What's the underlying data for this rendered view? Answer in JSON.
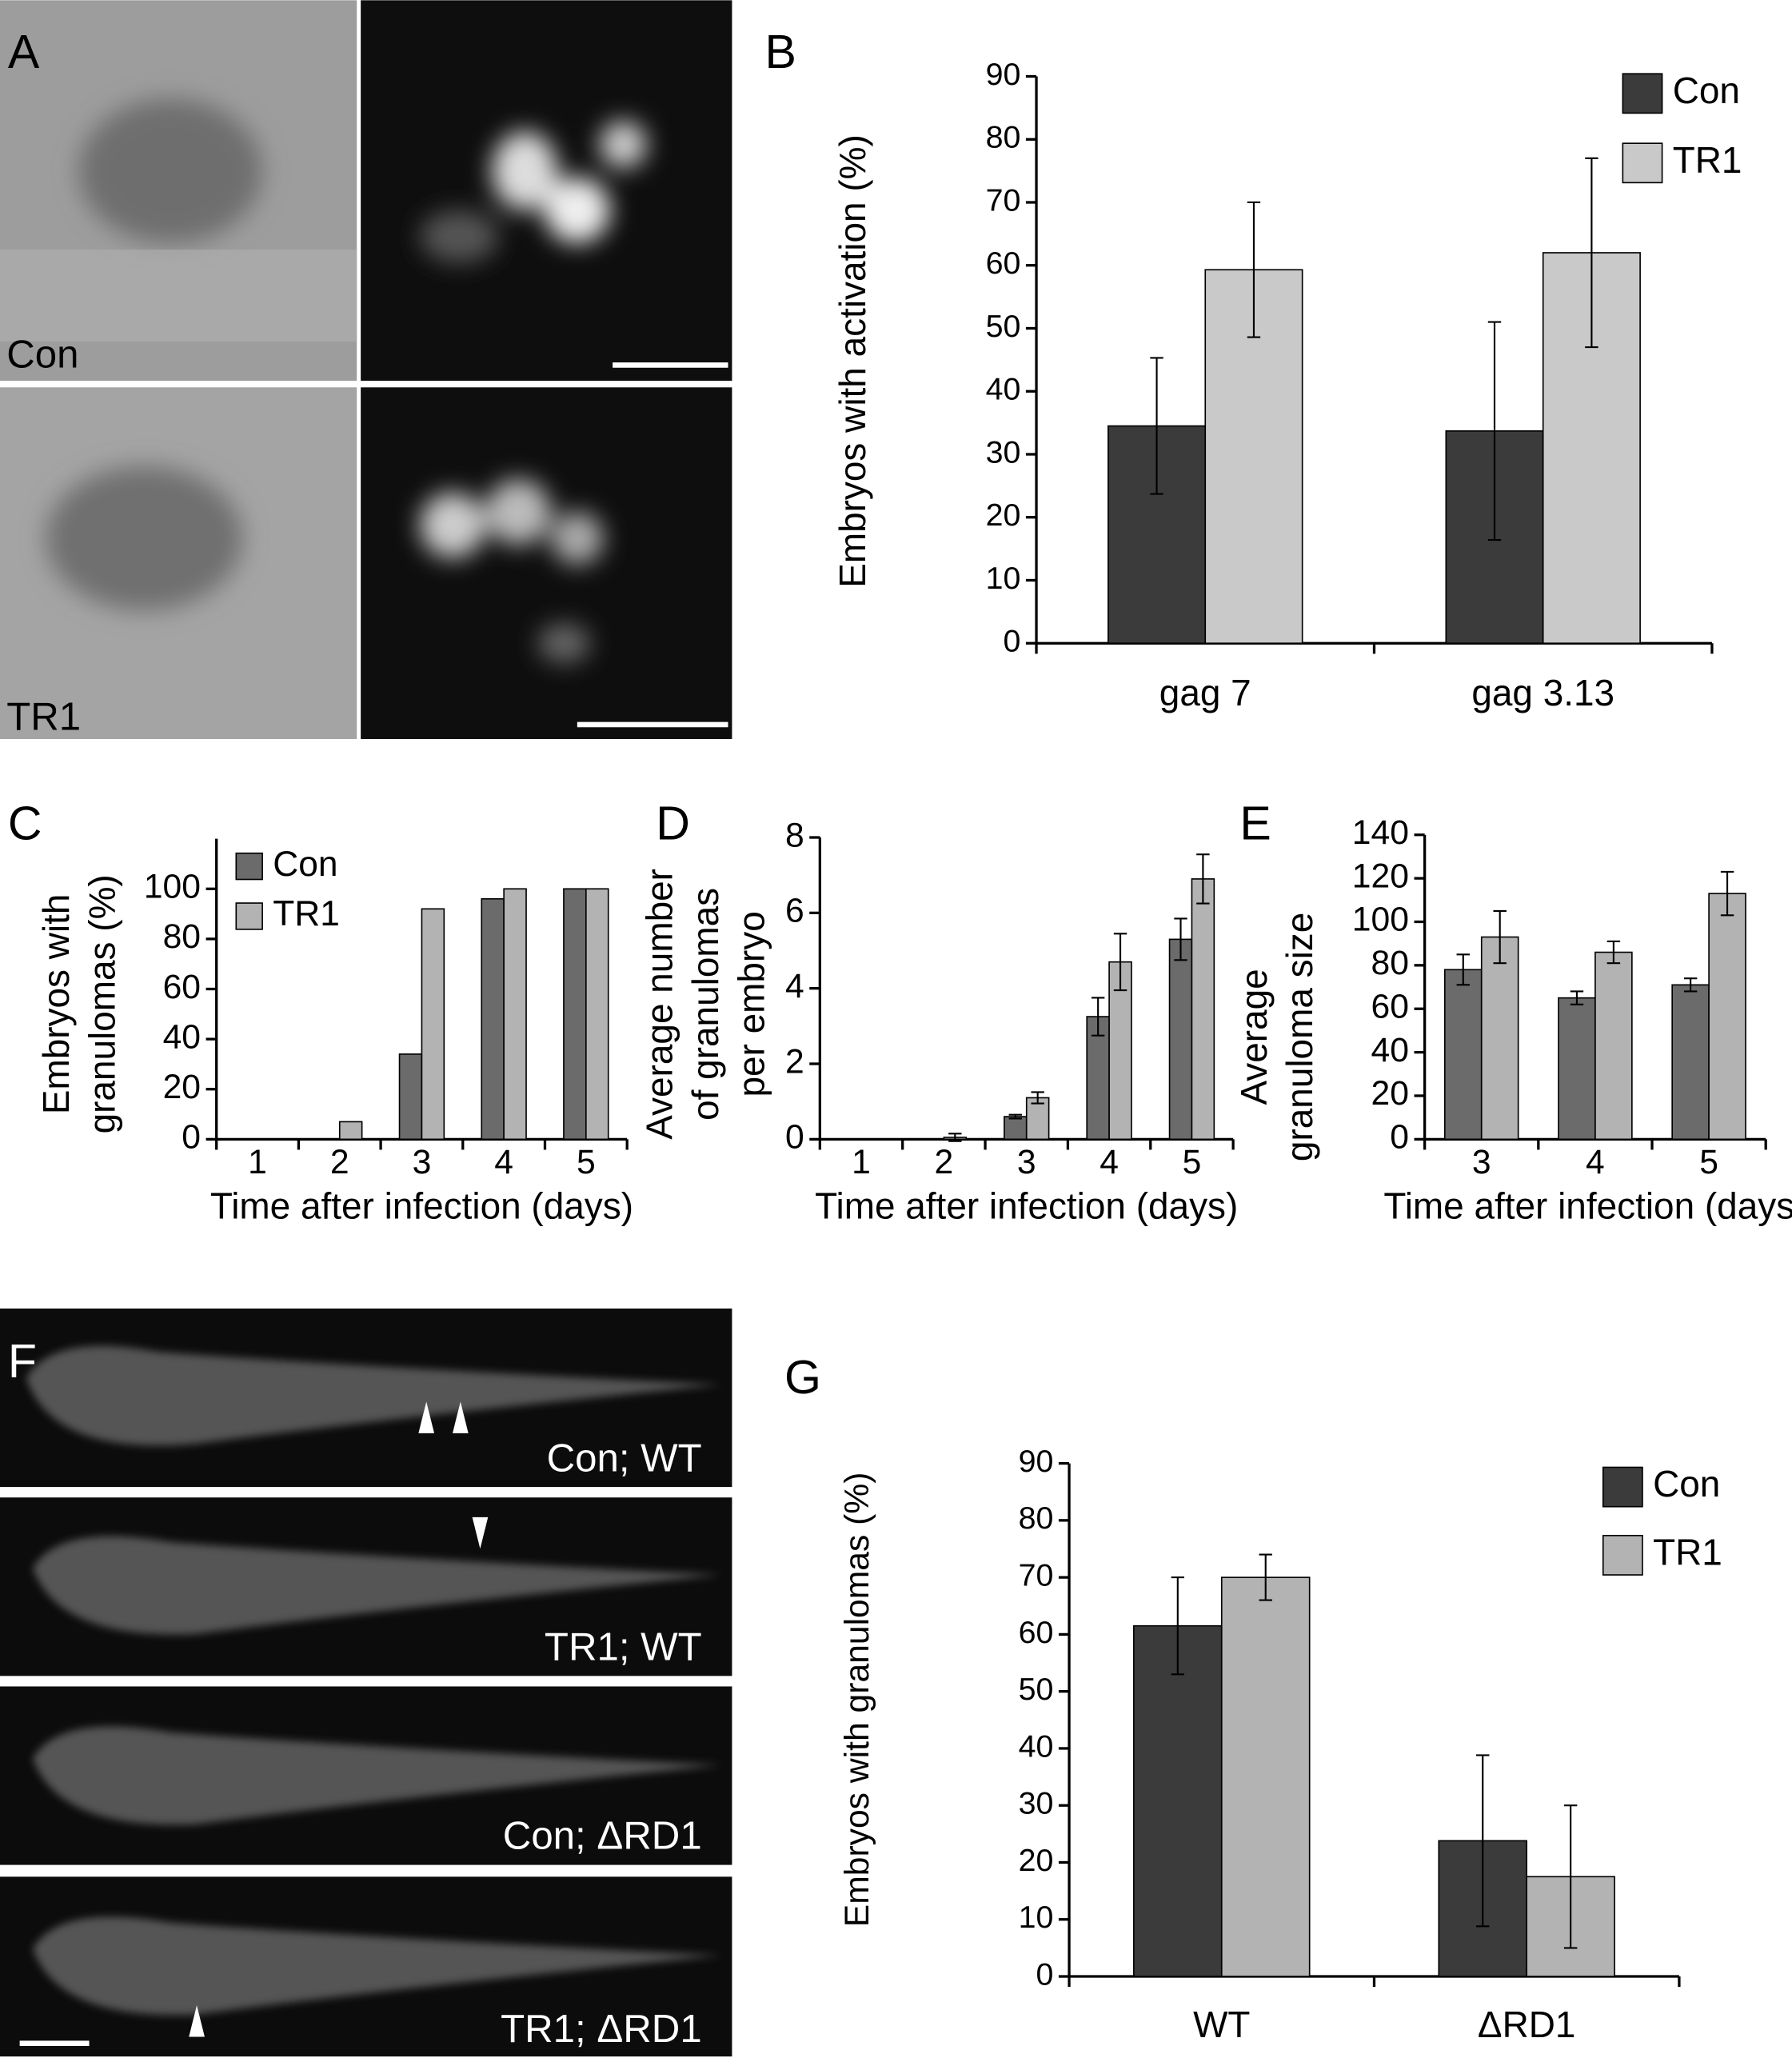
{
  "images": {
    "A": {
      "panel": "A",
      "rows": [
        "Con",
        "TR1"
      ]
    },
    "F": {
      "panel": "F",
      "rows": [
        "Con; WT",
        "TR1; WT",
        "Con; ΔRD1",
        "TR1; ΔRD1"
      ]
    }
  },
  "chart_data": [
    {
      "panel": "B",
      "type": "bar",
      "ylabel": [
        "Embryos with activation (%)"
      ],
      "categories": [
        "gag 7",
        "gag 3.13"
      ],
      "legend": true,
      "legend_position": "upper right",
      "ylim": [
        0,
        90
      ],
      "yticks": [
        0,
        10,
        20,
        30,
        40,
        50,
        60,
        70,
        80,
        90
      ],
      "series": [
        {
          "name": "Con",
          "color": "#3b3b3b",
          "values": [
            34.5,
            33.7
          ],
          "errors": [
            10.8,
            17.3
          ]
        },
        {
          "name": "TR1",
          "color": "#c9c9c9",
          "values": [
            59.3,
            62
          ],
          "errors": [
            10.7,
            15
          ]
        }
      ]
    },
    {
      "panel": "C",
      "type": "bar",
      "ylabel": [
        "Embryos with",
        "granulomas (%)"
      ],
      "xlabel": "Time after infection (days)",
      "categories": [
        "1",
        "2",
        "3",
        "4",
        "5"
      ],
      "legend": true,
      "legend_position": "upper left",
      "ylim": [
        0,
        120
      ],
      "yticks": [
        0,
        20,
        40,
        60,
        80,
        100
      ],
      "series": [
        {
          "name": "Con",
          "color": "#6b6b6b",
          "values": [
            0,
            0,
            34,
            96,
            100
          ]
        },
        {
          "name": "TR1",
          "color": "#b3b3b3",
          "values": [
            0,
            7,
            92,
            100,
            100
          ]
        }
      ]
    },
    {
      "panel": "D",
      "type": "bar",
      "ylabel": [
        "Average number",
        "of granulomas",
        "per embryo"
      ],
      "xlabel": "Time after infection (days)",
      "categories": [
        "1",
        "2",
        "3",
        "4",
        "5"
      ],
      "legend": false,
      "ylim": [
        0,
        8
      ],
      "yticks": [
        0,
        2,
        4,
        6,
        8
      ],
      "series": [
        {
          "color": "#6b6b6b",
          "values": [
            0,
            0,
            0.6,
            3.25,
            5.3
          ],
          "errors": [
            0,
            0,
            0.05,
            0.5,
            0.55
          ]
        },
        {
          "color": "#b3b3b3",
          "values": [
            0,
            0.05,
            1.1,
            4.7,
            6.9
          ],
          "errors": [
            0,
            0.1,
            0.15,
            0.75,
            0.65
          ]
        }
      ]
    },
    {
      "panel": "E",
      "type": "bar",
      "ylabel": [
        "Average",
        "granuloma size"
      ],
      "xlabel": "Time after infection (days)",
      "categories": [
        "3",
        "4",
        "5"
      ],
      "legend": false,
      "ylim": [
        0,
        140
      ],
      "yticks": [
        0,
        20,
        40,
        60,
        80,
        100,
        120,
        140
      ],
      "series": [
        {
          "color": "#6b6b6b",
          "values": [
            78,
            65,
            71
          ],
          "errors": [
            7,
            3,
            3
          ]
        },
        {
          "color": "#b3b3b3",
          "values": [
            93,
            86,
            113
          ],
          "errors": [
            12,
            5,
            10
          ]
        }
      ]
    },
    {
      "panel": "G",
      "type": "bar",
      "ylabel": [
        "Embryos with granulomas (%)"
      ],
      "categories": [
        "WT",
        "ΔRD1"
      ],
      "legend": true,
      "legend_position": "upper right",
      "ylim": [
        0,
        90
      ],
      "yticks": [
        0,
        10,
        20,
        30,
        40,
        50,
        60,
        70,
        80,
        90
      ],
      "series": [
        {
          "name": "Con",
          "color": "#3b3b3b",
          "values": [
            61.5,
            23.8
          ],
          "errors": [
            8.5,
            15
          ]
        },
        {
          "name": "TR1",
          "color": "#b3b3b3",
          "values": [
            70,
            17.5
          ],
          "errors": [
            4,
            12.5
          ]
        }
      ]
    }
  ]
}
